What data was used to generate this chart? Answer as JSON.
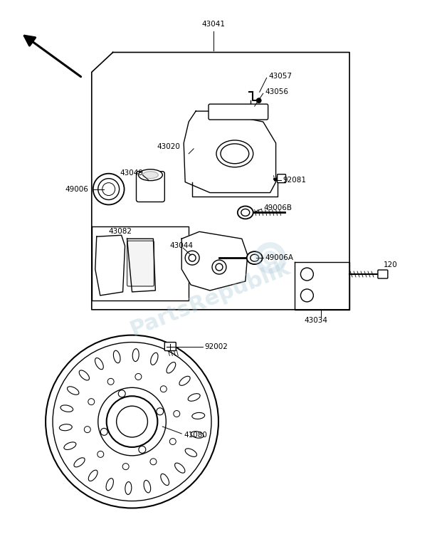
{
  "bg_color": "#ffffff",
  "line_color": "#000000",
  "watermark_text": "PartsRepublik",
  "watermark_color": "#a8c8d8",
  "watermark_alpha": 0.35,
  "figsize": [
    6.0,
    7.85
  ],
  "dpi": 100
}
